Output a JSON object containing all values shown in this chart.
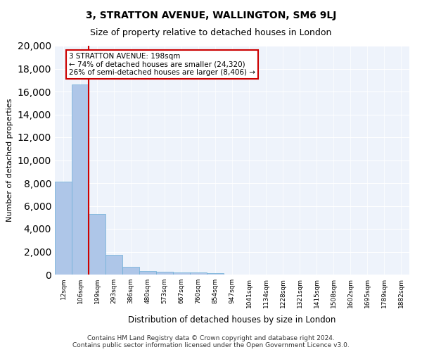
{
  "title": "3, STRATTON AVENUE, WALLINGTON, SM6 9LJ",
  "subtitle": "Size of property relative to detached houses in London",
  "xlabel": "Distribution of detached houses by size in London",
  "ylabel": "Number of detached properties",
  "bar_color": "#aec6e8",
  "bar_edge_color": "#6baed6",
  "vline_color": "#cc0000",
  "vline_x_index": 2,
  "annotation_text": "3 STRATTON AVENUE: 198sqm\n← 74% of detached houses are smaller (24,320)\n26% of semi-detached houses are larger (8,406) →",
  "annotation_box_edge_color": "#cc0000",
  "footer": "Contains HM Land Registry data © Crown copyright and database right 2024.\nContains public sector information licensed under the Open Government Licence v3.0.",
  "bin_labels": [
    "12sqm",
    "106sqm",
    "199sqm",
    "293sqm",
    "386sqm",
    "480sqm",
    "573sqm",
    "667sqm",
    "760sqm",
    "854sqm",
    "947sqm",
    "1041sqm",
    "1134sqm",
    "1228sqm",
    "1321sqm",
    "1415sqm",
    "1508sqm",
    "1602sqm",
    "1695sqm",
    "1789sqm",
    "1882sqm"
  ],
  "bar_heights": [
    8100,
    16600,
    5300,
    1750,
    700,
    320,
    230,
    210,
    180,
    150,
    0,
    0,
    0,
    0,
    0,
    0,
    0,
    0,
    0,
    0,
    0
  ],
  "ylim": [
    0,
    20000
  ],
  "yticks": [
    0,
    2000,
    4000,
    6000,
    8000,
    10000,
    12000,
    14000,
    16000,
    18000,
    20000
  ],
  "background_color": "#eef3fb",
  "figsize": [
    6.0,
    5.0
  ],
  "dpi": 100
}
